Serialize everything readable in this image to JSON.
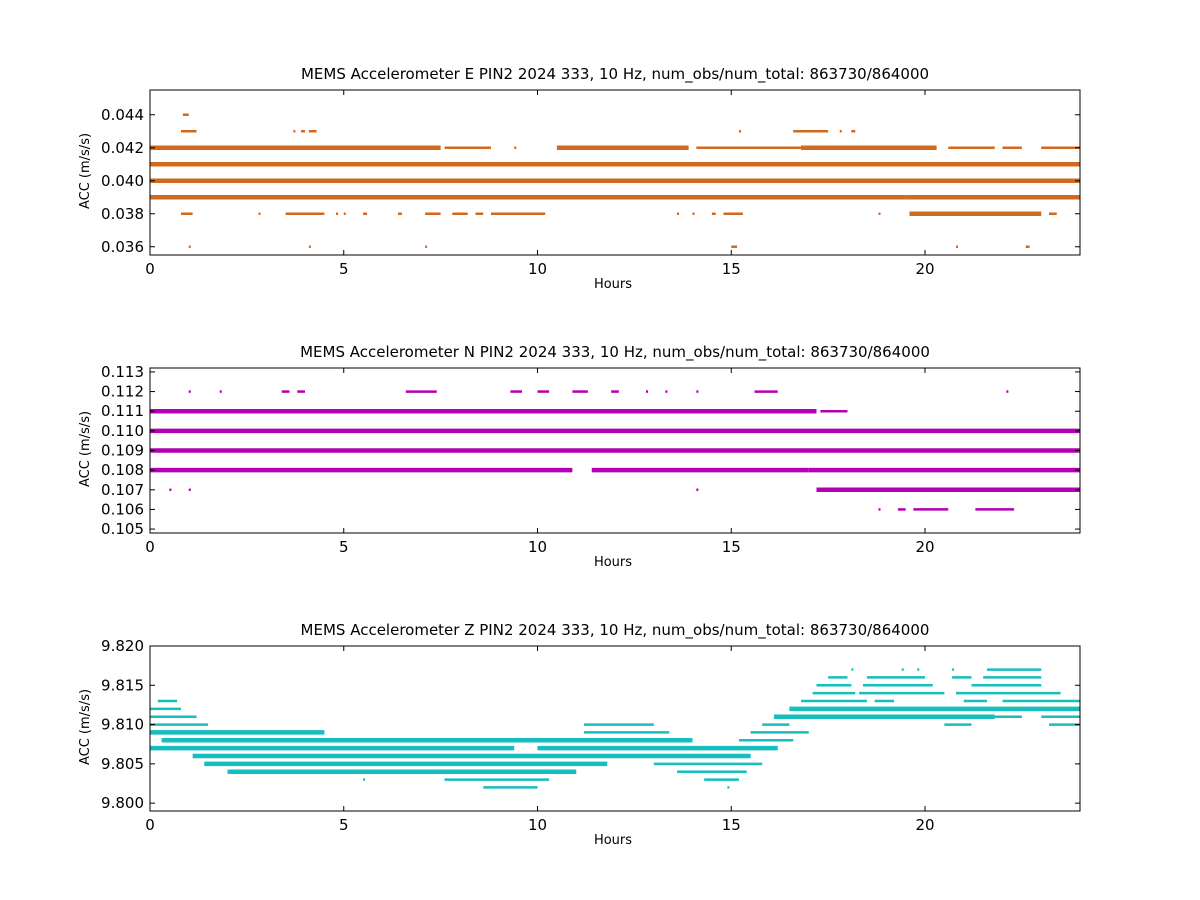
{
  "chart_data": [
    {
      "type": "scatter",
      "title": "MEMS Accelerometer E PIN2 2024 333, 10 Hz, num_obs/num_total: 863730/864000",
      "xlabel": "Hours",
      "ylabel": "ACC (m/s/s)",
      "xlim": [
        0,
        24
      ],
      "ylim": [
        0.0355,
        0.0455
      ],
      "xticks": [
        0,
        5,
        10,
        15,
        20
      ],
      "yticks": [
        0.036,
        0.038,
        0.04,
        0.042,
        0.044
      ],
      "ytick_labels": [
        "0.036",
        "0.038",
        "0.040",
        "0.042",
        "0.044"
      ],
      "grid": false,
      "color": "#d2691e",
      "levels": [
        {
          "y": 0.036,
          "segments": [
            [
              1.0,
              1.05
            ],
            [
              4.1,
              4.15
            ],
            [
              7.1,
              7.15
            ],
            [
              15.0,
              15.15
            ],
            [
              20.8,
              20.85
            ],
            [
              22.6,
              22.7
            ]
          ]
        },
        {
          "y": 0.037,
          "segments": []
        },
        {
          "y": 0.038,
          "segments": [
            [
              0.8,
              1.1
            ],
            [
              2.8,
              2.85
            ],
            [
              3.5,
              4.5
            ],
            [
              4.8,
              4.85
            ],
            [
              5.0,
              5.05
            ],
            [
              5.5,
              5.6
            ],
            [
              6.4,
              6.5
            ],
            [
              7.1,
              7.5
            ],
            [
              7.8,
              8.2
            ],
            [
              8.4,
              8.6
            ],
            [
              8.8,
              10.2
            ],
            [
              13.6,
              13.65
            ],
            [
              14.0,
              14.05
            ],
            [
              14.5,
              14.6
            ],
            [
              14.8,
              15.3
            ],
            [
              18.8,
              18.85
            ],
            [
              19.6,
              23.0
            ],
            [
              23.2,
              23.4
            ]
          ]
        },
        {
          "y": 0.039,
          "segments": [
            [
              0,
              19.5
            ],
            [
              19.5,
              24
            ]
          ]
        },
        {
          "y": 0.04,
          "segments": [
            [
              0,
              24
            ]
          ]
        },
        {
          "y": 0.041,
          "segments": [
            [
              0,
              24
            ]
          ]
        },
        {
          "y": 0.042,
          "segments": [
            [
              0,
              7.5
            ],
            [
              7.6,
              8.8
            ],
            [
              9.4,
              9.45
            ],
            [
              10.5,
              13.9
            ],
            [
              14.1,
              16.8
            ],
            [
              16.8,
              20.3
            ],
            [
              20.6,
              21.8
            ],
            [
              22.0,
              22.5
            ],
            [
              23.0,
              24
            ]
          ]
        },
        {
          "y": 0.043,
          "segments": [
            [
              0.8,
              1.2
            ],
            [
              3.7,
              3.75
            ],
            [
              3.9,
              4.0
            ],
            [
              4.1,
              4.3
            ],
            [
              15.2,
              15.25
            ],
            [
              16.6,
              17.5
            ],
            [
              17.8,
              17.85
            ],
            [
              18.1,
              18.2
            ]
          ]
        },
        {
          "y": 0.044,
          "segments": [
            [
              0.85,
              1.0
            ]
          ]
        }
      ]
    },
    {
      "type": "scatter",
      "title": "MEMS Accelerometer N PIN2 2024 333, 10 Hz, num_obs/num_total: 863730/864000",
      "xlabel": "Hours",
      "ylabel": "ACC (m/s/s)",
      "xlim": [
        0,
        24
      ],
      "ylim": [
        0.1048,
        0.1132
      ],
      "xticks": [
        0,
        5,
        10,
        15,
        20
      ],
      "yticks": [
        0.105,
        0.106,
        0.107,
        0.108,
        0.109,
        0.11,
        0.111,
        0.112,
        0.113
      ],
      "ytick_labels": [
        "0.105",
        "0.106",
        "0.107",
        "0.108",
        "0.109",
        "0.110",
        "0.111",
        "0.112",
        "0.113"
      ],
      "grid": false,
      "color": "#b400b4",
      "levels": [
        {
          "y": 0.106,
          "segments": [
            [
              18.8,
              18.85
            ],
            [
              19.3,
              19.5
            ],
            [
              19.7,
              20.6
            ],
            [
              21.3,
              22.3
            ]
          ]
        },
        {
          "y": 0.107,
          "segments": [
            [
              0.5,
              0.55
            ],
            [
              1.0,
              1.05
            ],
            [
              14.1,
              14.15
            ],
            [
              17.2,
              24
            ]
          ]
        },
        {
          "y": 0.108,
          "segments": [
            [
              0,
              10.9
            ],
            [
              11.4,
              17.0
            ],
            [
              17.0,
              24
            ]
          ]
        },
        {
          "y": 0.109,
          "segments": [
            [
              0,
              24
            ]
          ]
        },
        {
          "y": 0.11,
          "segments": [
            [
              0,
              18.0
            ],
            [
              18.0,
              24
            ]
          ]
        },
        {
          "y": 0.111,
          "segments": [
            [
              0,
              17.2
            ],
            [
              17.3,
              18.0
            ]
          ]
        },
        {
          "y": 0.112,
          "segments": [
            [
              1.0,
              1.05
            ],
            [
              1.8,
              1.85
            ],
            [
              3.4,
              3.6
            ],
            [
              3.8,
              4.0
            ],
            [
              6.6,
              7.4
            ],
            [
              9.3,
              9.6
            ],
            [
              10.0,
              10.3
            ],
            [
              10.9,
              11.3
            ],
            [
              11.9,
              12.1
            ],
            [
              12.8,
              12.85
            ],
            [
              13.3,
              13.35
            ],
            [
              14.1,
              14.15
            ],
            [
              15.6,
              16.2
            ],
            [
              22.1,
              22.15
            ]
          ]
        }
      ]
    },
    {
      "type": "scatter",
      "title": "MEMS Accelerometer Z PIN2 2024 333, 10 Hz, num_obs/num_total: 863730/864000",
      "xlabel": "Hours",
      "ylabel": "ACC (m/s/s)",
      "xlim": [
        0,
        24
      ],
      "ylim": [
        9.799,
        9.82
      ],
      "xticks": [
        0,
        5,
        10,
        15,
        20
      ],
      "yticks": [
        9.8,
        9.805,
        9.81,
        9.815,
        9.82
      ],
      "ytick_labels": [
        "9.800",
        "9.805",
        "9.810",
        "9.815",
        "9.820"
      ],
      "grid": false,
      "color": "#17bebe",
      "levels": [
        {
          "y": 9.802,
          "segments": [
            [
              8.6,
              10.0
            ],
            [
              14.9,
              14.95
            ]
          ]
        },
        {
          "y": 9.803,
          "segments": [
            [
              5.5,
              5.55
            ],
            [
              7.6,
              10.3
            ],
            [
              14.3,
              15.2
            ]
          ]
        },
        {
          "y": 9.804,
          "segments": [
            [
              2.0,
              11.0
            ],
            [
              13.6,
              15.4
            ]
          ]
        },
        {
          "y": 9.805,
          "segments": [
            [
              1.4,
              11.8
            ],
            [
              13.0,
              15.8
            ]
          ]
        },
        {
          "y": 9.806,
          "segments": [
            [
              1.1,
              15.5
            ]
          ]
        },
        {
          "y": 9.807,
          "segments": [
            [
              0,
              9.4
            ],
            [
              10.0,
              16.2
            ]
          ]
        },
        {
          "y": 9.808,
          "segments": [
            [
              0.3,
              14.0
            ],
            [
              15.2,
              16.6
            ]
          ]
        },
        {
          "y": 9.809,
          "segments": [
            [
              0,
              4.5
            ],
            [
              11.2,
              13.4
            ],
            [
              15.5,
              17.0
            ]
          ]
        },
        {
          "y": 9.81,
          "segments": [
            [
              0,
              1.5
            ],
            [
              11.2,
              13.0
            ],
            [
              15.8,
              16.5
            ],
            [
              20.5,
              21.2
            ],
            [
              23.2,
              24
            ]
          ]
        },
        {
          "y": 9.811,
          "segments": [
            [
              0,
              1.2
            ],
            [
              16.1,
              21.8
            ],
            [
              21.8,
              22.5
            ],
            [
              23.0,
              24
            ]
          ]
        },
        {
          "y": 9.812,
          "segments": [
            [
              0,
              0.8
            ],
            [
              16.5,
              24
            ]
          ]
        },
        {
          "y": 9.813,
          "segments": [
            [
              0.2,
              0.7
            ],
            [
              16.8,
              18.5
            ],
            [
              18.7,
              19.2
            ],
            [
              21.0,
              21.6
            ],
            [
              22.0,
              24
            ]
          ]
        },
        {
          "y": 9.814,
          "segments": [
            [
              17.1,
              18.2
            ],
            [
              18.3,
              20.5
            ],
            [
              20.8,
              23.5
            ]
          ]
        },
        {
          "y": 9.815,
          "segments": [
            [
              17.2,
              18.1
            ],
            [
              18.4,
              20.2
            ],
            [
              21.2,
              23.0
            ]
          ]
        },
        {
          "y": 9.816,
          "segments": [
            [
              17.5,
              18.0
            ],
            [
              18.5,
              20.0
            ],
            [
              20.7,
              21.2
            ],
            [
              21.5,
              23.0
            ]
          ]
        },
        {
          "y": 9.817,
          "segments": [
            [
              18.1,
              18.15
            ],
            [
              19.4,
              19.45
            ],
            [
              19.8,
              19.85
            ],
            [
              20.7,
              20.75
            ],
            [
              21.6,
              23.0
            ]
          ]
        }
      ]
    }
  ]
}
